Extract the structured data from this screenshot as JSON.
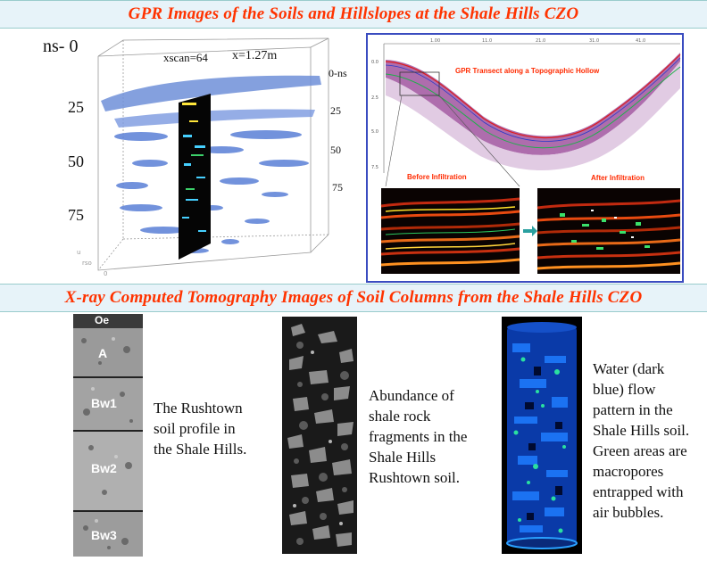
{
  "top_title": "GPR Images of the Soils and Hillslopes at the Shale Hills CZO",
  "mid_title": "X-ray Computed Tomography Images of Soil Columns from the Shale Hills CZO",
  "gpr3d": {
    "ns_label": "ns- 0",
    "scan_label": "xscan=64",
    "x_label": "x=1.27m",
    "left_ticks": [
      "25",
      "50",
      "75"
    ],
    "right_top": "0-ns",
    "right_ticks": [
      "25",
      "50",
      "75"
    ]
  },
  "transect": {
    "title": "GPR Transect along a Topographic Hollow",
    "before": "Before Infiltration",
    "after": "After Infiltration"
  },
  "columns": {
    "col1_layers": [
      "Oe",
      "A",
      "Bw1",
      "Bw2",
      "Bw3"
    ],
    "caption1": [
      "The Rushtown",
      "soil profile in",
      "the Shale Hills."
    ],
    "caption2": [
      "Abundance of",
      "shale rock",
      "fragments in the",
      "Shale Hills",
      "Rushtown soil."
    ],
    "caption3": [
      "Water (dark",
      "blue) flow",
      "pattern in the",
      "Shale Hills soil.",
      "Green areas are",
      "macropores",
      "entrapped with",
      "air bubbles."
    ]
  },
  "colors": {
    "title_red": "#ff3300",
    "banner_bg": "#e7f3f9",
    "panel_border": "#3a4cc0"
  }
}
